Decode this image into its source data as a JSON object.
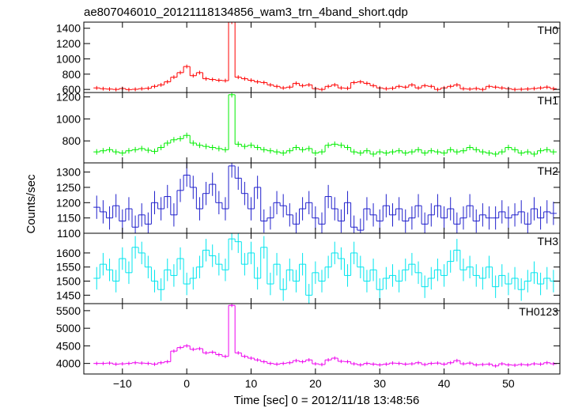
{
  "chart_data": [
    {
      "type": "line",
      "panel_label": "TH0",
      "title": "ae807046010_20121118134856_wam3_trn_4band_short.qdp",
      "color": "#ff0000",
      "ylim": [
        560,
        1480
      ],
      "yticks": [
        600,
        800,
        1000,
        1200,
        1400
      ],
      "x": [
        -14,
        -13,
        -12,
        -11,
        -10,
        -9,
        -8,
        -7,
        -6,
        -5,
        -4,
        -3,
        -2,
        -1,
        0,
        1,
        2,
        3,
        4,
        5,
        6,
        7,
        8,
        9,
        10,
        11,
        12,
        13,
        14,
        15,
        16,
        17,
        18,
        19,
        20,
        21,
        22,
        23,
        24,
        25,
        26,
        27,
        28,
        29,
        30,
        31,
        32,
        33,
        34,
        35,
        36,
        37,
        38,
        39,
        40,
        41,
        42,
        43,
        44,
        45,
        46,
        47,
        48,
        49,
        50,
        51,
        52,
        53,
        54,
        55,
        56,
        57
      ],
      "values": [
        620,
        610,
        605,
        600,
        612,
        598,
        602,
        610,
        615,
        640,
        660,
        700,
        760,
        820,
        900,
        780,
        820,
        740,
        730,
        720,
        715,
        1480,
        760,
        740,
        720,
        700,
        690,
        660,
        640,
        620,
        630,
        680,
        650,
        660,
        610,
        600,
        640,
        660,
        620,
        615,
        690,
        700,
        680,
        650,
        620,
        610,
        615,
        640,
        630,
        660,
        620,
        650,
        640,
        600,
        620,
        640,
        660,
        610,
        605,
        612,
        600,
        640,
        630,
        620,
        610,
        600,
        602,
        606,
        612,
        620,
        630,
        610
      ],
      "errors": [
        25,
        25,
        25,
        25,
        25,
        25,
        25,
        25,
        25,
        25,
        25,
        25,
        25,
        25,
        25,
        25,
        25,
        25,
        25,
        25,
        25,
        25,
        25,
        25,
        25,
        25,
        25,
        25,
        25,
        25,
        25,
        25,
        25,
        25,
        25,
        25,
        25,
        25,
        25,
        25,
        25,
        25,
        25,
        25,
        25,
        25,
        25,
        25,
        25,
        25,
        25,
        25,
        25,
        25,
        25,
        25,
        25,
        25,
        25,
        25,
        25,
        25,
        25,
        25,
        25,
        25,
        25,
        25,
        25,
        25,
        25,
        25
      ]
    },
    {
      "type": "line",
      "panel_label": "TH1",
      "color": "#00ee00",
      "ylim": [
        600,
        1240
      ],
      "yticks": [
        800,
        1000,
        1200
      ],
      "x": [
        -14,
        -13,
        -12,
        -11,
        -10,
        -9,
        -8,
        -7,
        -6,
        -5,
        -4,
        -3,
        -2,
        -1,
        0,
        1,
        2,
        3,
        4,
        5,
        6,
        7,
        8,
        9,
        10,
        11,
        12,
        13,
        14,
        15,
        16,
        17,
        18,
        19,
        20,
        21,
        22,
        23,
        24,
        25,
        26,
        27,
        28,
        29,
        30,
        31,
        32,
        33,
        34,
        35,
        36,
        37,
        38,
        39,
        40,
        41,
        42,
        43,
        44,
        45,
        46,
        47,
        48,
        49,
        50,
        51,
        52,
        53,
        54,
        55,
        56,
        57
      ],
      "values": [
        700,
        710,
        720,
        700,
        690,
        710,
        720,
        730,
        715,
        705,
        740,
        780,
        810,
        820,
        850,
        780,
        760,
        750,
        740,
        730,
        720,
        1220,
        770,
        750,
        760,
        740,
        720,
        710,
        700,
        690,
        710,
        740,
        720,
        730,
        690,
        700,
        760,
        770,
        760,
        740,
        700,
        690,
        710,
        680,
        700,
        690,
        700,
        710,
        690,
        700,
        720,
        690,
        710,
        700,
        690,
        720,
        700,
        710,
        740,
        720,
        700,
        690,
        680,
        700,
        740,
        720,
        690,
        700,
        680,
        710,
        720,
        700
      ],
      "errors": [
        25,
        25,
        25,
        25,
        25,
        25,
        25,
        25,
        25,
        25,
        25,
        25,
        25,
        25,
        25,
        25,
        25,
        25,
        25,
        25,
        25,
        25,
        25,
        25,
        25,
        25,
        25,
        25,
        25,
        25,
        25,
        25,
        25,
        25,
        25,
        25,
        25,
        25,
        25,
        25,
        25,
        25,
        25,
        25,
        25,
        25,
        25,
        25,
        25,
        25,
        25,
        25,
        25,
        25,
        25,
        25,
        25,
        25,
        25,
        25,
        25,
        25,
        25,
        25,
        25,
        25,
        25,
        25,
        25,
        25,
        25,
        25
      ]
    },
    {
      "type": "line",
      "panel_label": "TH2",
      "color": "#2020cc",
      "ylim": [
        1100,
        1330
      ],
      "yticks": [
        1100,
        1150,
        1200,
        1250,
        1300
      ],
      "x": [
        -14,
        -13,
        -12,
        -11,
        -10,
        -9,
        -8,
        -7,
        -6,
        -5,
        -4,
        -3,
        -2,
        -1,
        0,
        1,
        2,
        3,
        4,
        5,
        6,
        7,
        8,
        9,
        10,
        11,
        12,
        13,
        14,
        15,
        16,
        17,
        18,
        19,
        20,
        21,
        22,
        23,
        24,
        25,
        26,
        27,
        28,
        29,
        30,
        31,
        32,
        33,
        34,
        35,
        36,
        37,
        38,
        39,
        40,
        41,
        42,
        43,
        44,
        45,
        46,
        47,
        48,
        49,
        50,
        51,
        52,
        53,
        54,
        55,
        56,
        57
      ],
      "values": [
        1185,
        1170,
        1150,
        1190,
        1140,
        1180,
        1120,
        1160,
        1130,
        1200,
        1180,
        1220,
        1160,
        1240,
        1290,
        1250,
        1180,
        1230,
        1260,
        1200,
        1180,
        1320,
        1280,
        1230,
        1180,
        1250,
        1140,
        1150,
        1200,
        1190,
        1160,
        1130,
        1180,
        1200,
        1150,
        1130,
        1220,
        1180,
        1140,
        1200,
        1120,
        1110,
        1180,
        1160,
        1140,
        1190,
        1160,
        1180,
        1140,
        1150,
        1190,
        1130,
        1160,
        1190,
        1150,
        1180,
        1130,
        1150,
        1190,
        1140,
        1160,
        1150,
        1150,
        1170,
        1150,
        1160,
        1170,
        1130,
        1180,
        1150,
        1170,
        1165
      ],
      "errors": [
        38,
        38,
        38,
        38,
        38,
        38,
        38,
        38,
        38,
        38,
        38,
        38,
        38,
        38,
        38,
        38,
        38,
        38,
        38,
        38,
        38,
        38,
        38,
        38,
        38,
        38,
        38,
        38,
        38,
        38,
        38,
        38,
        38,
        38,
        38,
        38,
        38,
        38,
        38,
        38,
        38,
        38,
        38,
        38,
        38,
        38,
        38,
        38,
        38,
        38,
        38,
        38,
        38,
        38,
        38,
        38,
        38,
        38,
        38,
        38,
        38,
        38,
        38,
        38,
        38,
        38,
        38,
        38,
        38,
        38,
        38,
        38
      ]
    },
    {
      "type": "line",
      "panel_label": "TH3",
      "color": "#00e5ee",
      "ylim": [
        1420,
        1670
      ],
      "yticks": [
        1450,
        1500,
        1550,
        1600
      ],
      "x": [
        -14,
        -13,
        -12,
        -11,
        -10,
        -9,
        -8,
        -7,
        -6,
        -5,
        -4,
        -3,
        -2,
        -1,
        0,
        1,
        2,
        3,
        4,
        5,
        6,
        7,
        8,
        9,
        10,
        11,
        12,
        13,
        14,
        15,
        16,
        17,
        18,
        19,
        20,
        21,
        22,
        23,
        24,
        25,
        26,
        27,
        28,
        29,
        30,
        31,
        32,
        33,
        34,
        35,
        36,
        37,
        38,
        39,
        40,
        41,
        42,
        43,
        44,
        45,
        46,
        47,
        48,
        49,
        50,
        51,
        52,
        53,
        54,
        55,
        56,
        57
      ],
      "values": [
        1510,
        1560,
        1540,
        1500,
        1580,
        1530,
        1620,
        1600,
        1550,
        1500,
        1470,
        1540,
        1520,
        1580,
        1490,
        1510,
        1550,
        1610,
        1590,
        1560,
        1540,
        1650,
        1640,
        1560,
        1600,
        1510,
        1620,
        1490,
        1560,
        1470,
        1540,
        1500,
        1560,
        1450,
        1530,
        1500,
        1550,
        1600,
        1580,
        1520,
        1600,
        1550,
        1500,
        1540,
        1470,
        1510,
        1520,
        1500,
        1540,
        1560,
        1530,
        1480,
        1510,
        1540,
        1520,
        1570,
        1610,
        1540,
        1550,
        1520,
        1510,
        1550,
        1480,
        1520,
        1490,
        1510,
        1470,
        1500,
        1530,
        1490,
        1510,
        1500
      ],
      "errors": [
        40,
        40,
        40,
        40,
        40,
        40,
        40,
        40,
        40,
        40,
        40,
        40,
        40,
        40,
        40,
        40,
        40,
        40,
        40,
        40,
        40,
        40,
        40,
        40,
        40,
        40,
        40,
        40,
        40,
        40,
        40,
        40,
        40,
        40,
        40,
        40,
        40,
        40,
        40,
        40,
        40,
        40,
        40,
        40,
        40,
        40,
        40,
        40,
        40,
        40,
        40,
        40,
        40,
        40,
        40,
        40,
        40,
        40,
        40,
        40,
        40,
        40,
        40,
        40,
        40,
        40,
        40,
        40,
        40,
        40,
        40,
        40
      ]
    },
    {
      "type": "line",
      "panel_label": "TH0123",
      "color": "#ee00ee",
      "xlabel": "Time [sec] 0 = 2012/11/18 13:48:56",
      "ylim": [
        3700,
        5700
      ],
      "yticks": [
        4000,
        4500,
        5000,
        5500
      ],
      "xlim": [
        -16,
        58
      ],
      "xticks": [
        -10,
        0,
        10,
        20,
        30,
        40,
        50
      ],
      "x": [
        -14,
        -13,
        -12,
        -11,
        -10,
        -9,
        -8,
        -7,
        -6,
        -5,
        -4,
        -3,
        -2,
        -1,
        0,
        1,
        2,
        3,
        4,
        5,
        6,
        7,
        8,
        9,
        10,
        11,
        12,
        13,
        14,
        15,
        16,
        17,
        18,
        19,
        20,
        21,
        22,
        23,
        24,
        25,
        26,
        27,
        28,
        29,
        30,
        31,
        32,
        33,
        34,
        35,
        36,
        37,
        38,
        39,
        40,
        41,
        42,
        43,
        44,
        45,
        46,
        47,
        48,
        49,
        50,
        51,
        52,
        53,
        54,
        55,
        56,
        57
      ],
      "values": [
        4000,
        4000,
        4010,
        3980,
        3990,
        4000,
        4020,
        4010,
        4000,
        3980,
        4020,
        4050,
        4350,
        4450,
        4500,
        4400,
        4420,
        4300,
        4320,
        4250,
        4200,
        5650,
        4300,
        4200,
        4150,
        4100,
        4050,
        4000,
        3980,
        4000,
        4020,
        4080,
        4050,
        4100,
        3990,
        3970,
        4100,
        4150,
        4060,
        4050,
        3990,
        3960,
        4000,
        3980,
        3960,
        3980,
        4010,
        4000,
        3980,
        3990,
        4020,
        3970,
        4000,
        4010,
        3980,
        4020,
        4080,
        3990,
        4010,
        3960,
        3970,
        3980,
        3930,
        3990,
        3960,
        3950,
        3970,
        3960,
        3990,
        3980,
        4020,
        3990
      ],
      "errors": [
        50,
        50,
        50,
        50,
        50,
        50,
        50,
        50,
        50,
        50,
        50,
        50,
        50,
        50,
        50,
        50,
        50,
        50,
        50,
        50,
        50,
        50,
        50,
        50,
        50,
        50,
        50,
        50,
        50,
        50,
        50,
        50,
        50,
        50,
        50,
        50,
        50,
        50,
        50,
        50,
        50,
        50,
        50,
        50,
        50,
        50,
        50,
        50,
        50,
        50,
        50,
        50,
        50,
        50,
        50,
        50,
        50,
        50,
        50,
        50,
        50,
        50,
        50,
        50,
        50,
        50,
        50,
        50,
        50,
        50,
        50,
        50
      ]
    }
  ],
  "ylabel": "Counts/sec"
}
